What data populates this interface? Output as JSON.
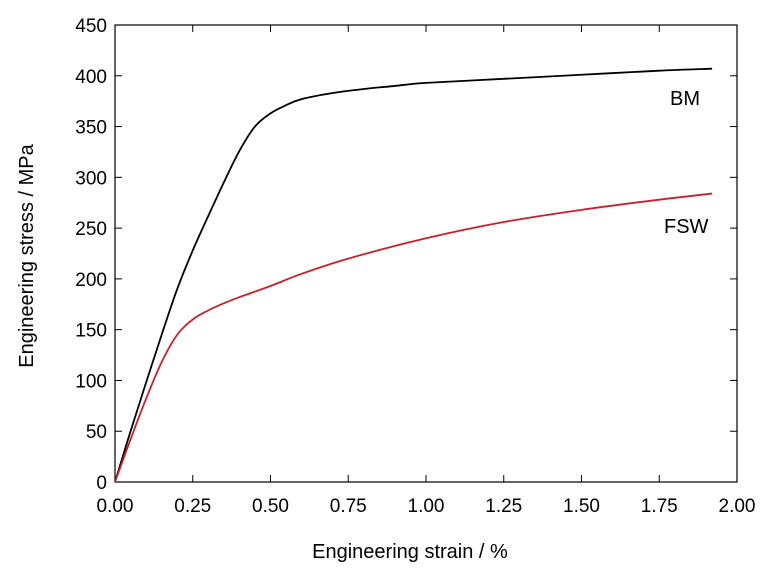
{
  "chart_data": {
    "type": "line",
    "title": "",
    "xlabel": "Engineering strain / %",
    "ylabel": "Engineering stress / MPa",
    "xlim": [
      0,
      2.0
    ],
    "ylim": [
      0,
      450
    ],
    "xticks": [
      "0.00",
      "0.25",
      "0.50",
      "0.75",
      "1.00",
      "1.25",
      "1.50",
      "1.75",
      "2.00"
    ],
    "yticks": [
      "0",
      "50",
      "100",
      "150",
      "200",
      "250",
      "300",
      "350",
      "400",
      "450"
    ],
    "grid": false,
    "legend": "none",
    "series": [
      {
        "name": "BM",
        "color": "#000000",
        "x": [
          0.0,
          0.05,
          0.1,
          0.15,
          0.2,
          0.25,
          0.3,
          0.35,
          0.4,
          0.45,
          0.5,
          0.55,
          0.6,
          0.7,
          0.8,
          0.9,
          1.0,
          1.25,
          1.5,
          1.75,
          1.92
        ],
        "y": [
          0,
          50,
          98,
          145,
          190,
          228,
          262,
          295,
          326,
          350,
          363,
          371,
          377,
          383,
          387,
          390,
          393,
          397,
          401,
          405,
          407
        ]
      },
      {
        "name": "FSW",
        "color": "#c8202a",
        "x": [
          0.0,
          0.05,
          0.1,
          0.15,
          0.2,
          0.25,
          0.3,
          0.35,
          0.4,
          0.5,
          0.6,
          0.75,
          1.0,
          1.25,
          1.5,
          1.75,
          1.92
        ],
        "y": [
          0,
          42,
          82,
          118,
          145,
          160,
          169,
          176,
          182,
          193,
          205,
          220,
          240,
          256,
          268,
          278,
          284
        ]
      }
    ]
  }
}
